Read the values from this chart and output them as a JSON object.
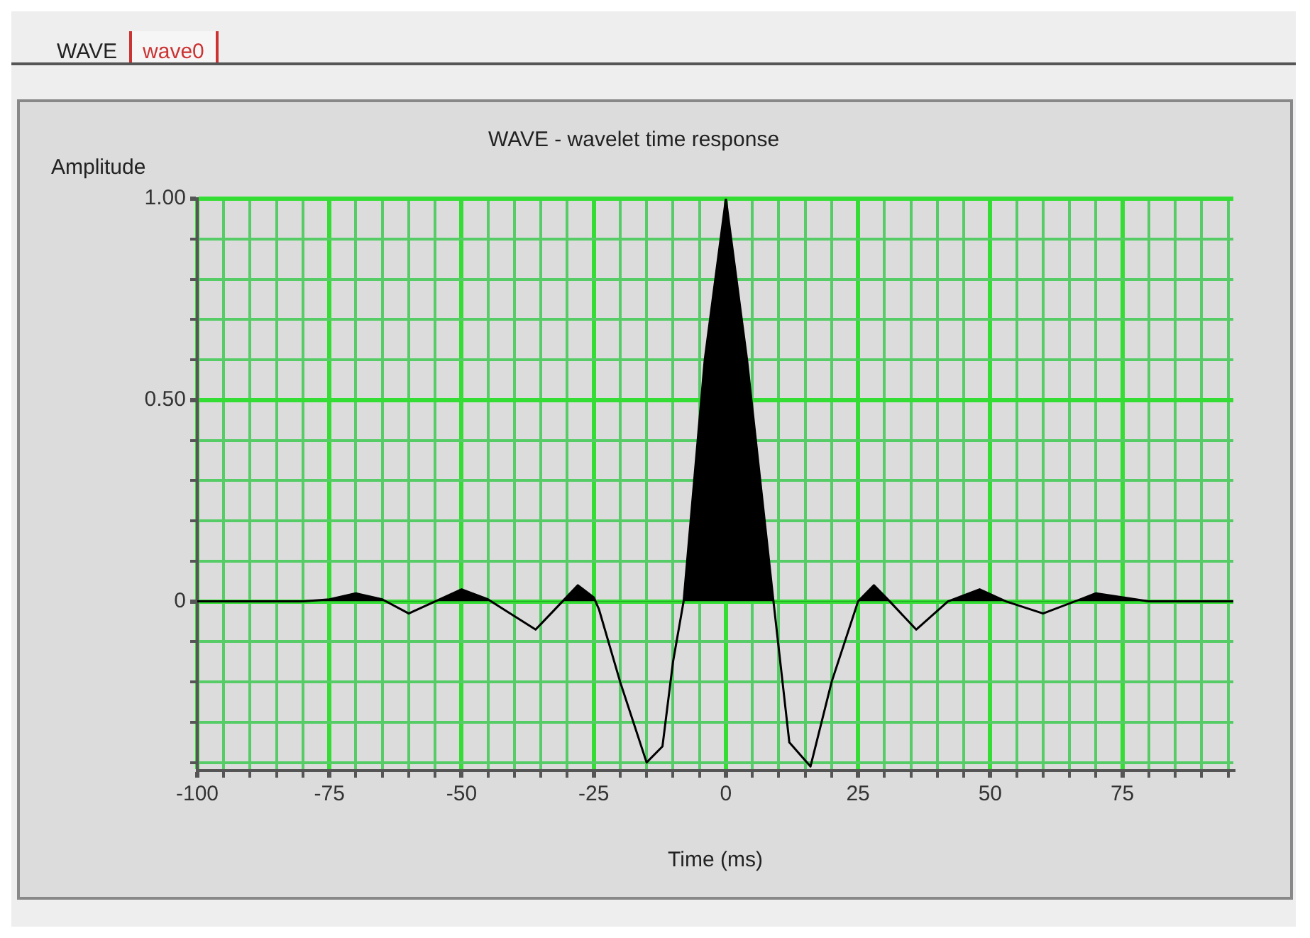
{
  "chart_data": {
    "type": "area",
    "title": "WAVE - wavelet time response",
    "xlabel": "Time (ms)",
    "ylabel": "Amplitude",
    "annotations": [
      "WAVE",
      "wave0"
    ],
    "x": [
      -100,
      -80,
      -75,
      -70,
      -65,
      -60,
      -55,
      -50,
      -45,
      -42,
      -36,
      -28,
      -25,
      -24,
      -20,
      -15,
      -12,
      -10,
      -8,
      -4,
      0,
      4,
      9,
      12,
      16,
      20,
      25,
      28,
      31,
      36,
      42,
      48,
      53,
      60,
      70,
      80,
      96
    ],
    "series": [
      {
        "color": "#000000",
        "values": [
          0,
          0,
          0.005,
          0.02,
          0.005,
          -0.03,
          0,
          0.03,
          0.005,
          -0.02,
          -0.07,
          0.04,
          0.01,
          -0.02,
          -0.2,
          -0.4,
          -0.36,
          -0.15,
          0,
          0.6,
          1,
          0.6,
          0,
          -0.35,
          -0.41,
          -0.2,
          0,
          0.04,
          0,
          -0.07,
          0,
          0.03,
          0,
          -0.03,
          0.02,
          0,
          0
        ]
      }
    ],
    "xlim": [
      -100,
      96
    ],
    "xticks": [
      -100,
      {
        "value": -95,
        "label": null
      },
      {
        "value": -90,
        "label": null
      },
      {
        "value": -85,
        "label": null
      },
      {
        "value": -80,
        "label": null
      },
      -75,
      {
        "value": -70,
        "label": null
      },
      {
        "value": -65,
        "label": null
      },
      {
        "value": -60,
        "label": null
      },
      {
        "value": -55,
        "label": null
      },
      -50,
      {
        "value": -45,
        "label": null
      },
      {
        "value": -40,
        "label": null
      },
      {
        "value": -35,
        "label": null
      },
      {
        "value": -30,
        "label": null
      },
      -25,
      {
        "value": -20,
        "label": null
      },
      {
        "value": -15,
        "label": null
      },
      {
        "value": -10,
        "label": null
      },
      {
        "value": -5,
        "label": null
      },
      0,
      {
        "value": 5,
        "label": null
      },
      {
        "value": 10,
        "label": null
      },
      {
        "value": 15,
        "label": null
      },
      {
        "value": 20,
        "label": null
      },
      25,
      {
        "value": 30,
        "label": null
      },
      {
        "value": 35,
        "label": null
      },
      {
        "value": 40,
        "label": null
      },
      {
        "value": 45,
        "label": null
      },
      50,
      {
        "value": 55,
        "label": null
      },
      {
        "value": 60,
        "label": null
      },
      {
        "value": 65,
        "label": null
      },
      {
        "value": 70,
        "label": null
      },
      75,
      {
        "value": 80,
        "label": null
      },
      {
        "value": 85,
        "label": null
      },
      {
        "value": 90,
        "label": null
      },
      {
        "value": 95,
        "label": null
      }
    ],
    "ylim": [
      -0.42,
      1
    ],
    "yticks": [
      {
        "value": -0.4,
        "label": null
      },
      {
        "value": -0.3,
        "label": null
      },
      {
        "value": -0.2,
        "label": null
      },
      {
        "value": -0.1,
        "label": null
      },
      0,
      {
        "value": 0.1,
        "label": null
      },
      {
        "value": 0.2,
        "label": null
      },
      {
        "value": 0.3,
        "label": null
      },
      {
        "value": 0.4,
        "label": null
      },
      {
        "value": 0.5,
        "label": "0.50"
      },
      {
        "value": 0.6,
        "label": null
      },
      {
        "value": 0.7,
        "label": null
      },
      {
        "value": 0.8,
        "label": null
      },
      {
        "value": 0.9,
        "label": null
      },
      {
        "value": 1,
        "label": "1.00"
      }
    ],
    "grid": true,
    "legend": false,
    "marker": "none",
    "line_style": "solid"
  }
}
